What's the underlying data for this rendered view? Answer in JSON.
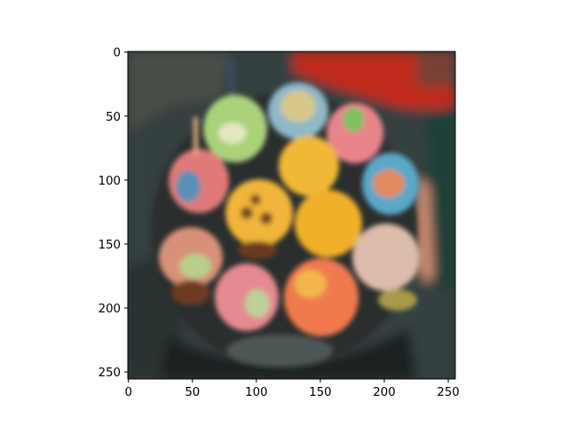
{
  "figure": {
    "background": "#ffffff",
    "image_description_colors": {
      "bg_dark": "#2b3536",
      "red_cloth": "#c4291c",
      "yellow": "#f0b030",
      "green": "#b9d28a",
      "pink": "#e97a72",
      "blue_teal": "#5aa6c8"
    }
  },
  "axes": {
    "x_ticks": [
      "0",
      "50",
      "100",
      "150",
      "200",
      "250"
    ],
    "y_ticks": [
      "0",
      "50",
      "100",
      "150",
      "200",
      "250"
    ],
    "x_tick_values": [
      0,
      50,
      100,
      150,
      200,
      250
    ],
    "y_tick_values": [
      0,
      50,
      100,
      150,
      200,
      250
    ],
    "xlim": [
      -0.5,
      255.5
    ],
    "ylim": [
      255.5,
      -0.5
    ]
  }
}
